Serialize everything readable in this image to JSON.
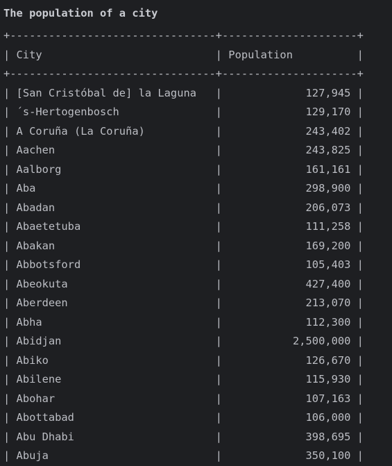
{
  "title": "The population of a city",
  "separator": "+--------------------------------+---------------------+",
  "header": {
    "city": "City",
    "population": "Population"
  },
  "rows": [
    {
      "city": "[San Cristóbal de] la Laguna",
      "population": "127,945"
    },
    {
      "city": "´s-Hertogenbosch",
      "population": "129,170"
    },
    {
      "city": "A Coruña (La Coruña)",
      "population": "243,402"
    },
    {
      "city": "Aachen",
      "population": "243,825"
    },
    {
      "city": "Aalborg",
      "population": "161,161"
    },
    {
      "city": "Aba",
      "population": "298,900"
    },
    {
      "city": "Abadan",
      "population": "206,073"
    },
    {
      "city": "Abaetetuba",
      "population": "111,258"
    },
    {
      "city": "Abakan",
      "population": "169,200"
    },
    {
      "city": "Abbotsford",
      "population": "105,403"
    },
    {
      "city": "Abeokuta",
      "population": "427,400"
    },
    {
      "city": "Aberdeen",
      "population": "213,070"
    },
    {
      "city": "Abha",
      "population": "112,300"
    },
    {
      "city": "Abidjan",
      "population": "2,500,000"
    },
    {
      "city": "Abiko",
      "population": "126,670"
    },
    {
      "city": "Abilene",
      "population": "115,930"
    },
    {
      "city": "Abohar",
      "population": "107,163"
    },
    {
      "city": "Abottabad",
      "population": "106,000"
    },
    {
      "city": "Abu Dhabi",
      "population": "398,695"
    },
    {
      "city": "Abuja",
      "population": "350,100"
    }
  ]
}
